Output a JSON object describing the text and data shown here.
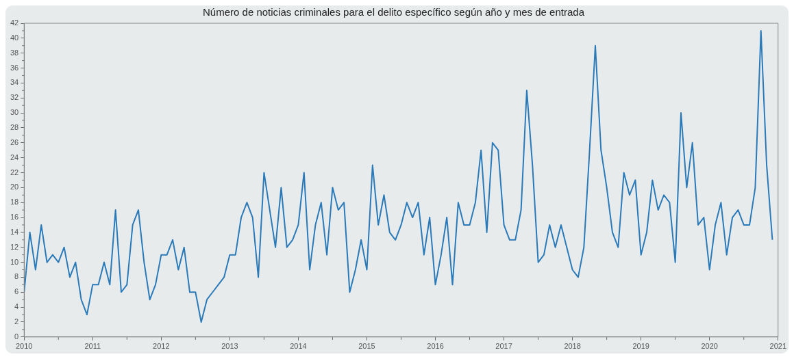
{
  "chart_data": {
    "type": "line",
    "title": "Número de noticias criminales para el delito específico según año y mes de entrada",
    "x": [
      "2010-01",
      "2010-02",
      "2010-03",
      "2010-04",
      "2010-05",
      "2010-06",
      "2010-07",
      "2010-08",
      "2010-09",
      "2010-10",
      "2010-11",
      "2010-12",
      "2011-01",
      "2011-02",
      "2011-03",
      "2011-04",
      "2011-05",
      "2011-06",
      "2011-07",
      "2011-08",
      "2011-09",
      "2011-10",
      "2011-11",
      "2011-12",
      "2012-01",
      "2012-02",
      "2012-03",
      "2012-04",
      "2012-05",
      "2012-06",
      "2012-07",
      "2012-08",
      "2012-09",
      "2012-10",
      "2012-11",
      "2012-12",
      "2013-01",
      "2013-02",
      "2013-03",
      "2013-04",
      "2013-05",
      "2013-06",
      "2013-07",
      "2013-08",
      "2013-09",
      "2013-10",
      "2013-11",
      "2013-12",
      "2014-01",
      "2014-02",
      "2014-03",
      "2014-04",
      "2014-05",
      "2014-06",
      "2014-07",
      "2014-08",
      "2014-09",
      "2014-10",
      "2014-11",
      "2014-12",
      "2015-01",
      "2015-02",
      "2015-03",
      "2015-04",
      "2015-05",
      "2015-06",
      "2015-07",
      "2015-08",
      "2015-09",
      "2015-10",
      "2015-11",
      "2015-12",
      "2016-01",
      "2016-02",
      "2016-03",
      "2016-04",
      "2016-05",
      "2016-06",
      "2016-07",
      "2016-08",
      "2016-09",
      "2016-10",
      "2016-11",
      "2016-12",
      "2017-01",
      "2017-02",
      "2017-03",
      "2017-04",
      "2017-05",
      "2017-06",
      "2017-07",
      "2017-08",
      "2017-09",
      "2017-10",
      "2017-11",
      "2017-12",
      "2018-01",
      "2018-02",
      "2018-03",
      "2018-04",
      "2018-05",
      "2018-06",
      "2018-07",
      "2018-08",
      "2018-09",
      "2018-10",
      "2018-11",
      "2018-12",
      "2019-01",
      "2019-02",
      "2019-03",
      "2019-04",
      "2019-05",
      "2019-06",
      "2019-07",
      "2019-08",
      "2019-09",
      "2019-10",
      "2019-11",
      "2019-12",
      "2020-01",
      "2020-02",
      "2020-03",
      "2020-04",
      "2020-05",
      "2020-06",
      "2020-07",
      "2020-08",
      "2020-09",
      "2020-10",
      "2020-11",
      "2020-12"
    ],
    "series": [
      {
        "color": "#2a7ab9",
        "values": [
          6,
          14,
          9,
          15,
          10,
          11,
          10,
          12,
          8,
          10,
          5,
          3,
          7,
          7,
          10,
          7,
          17,
          6,
          7,
          15,
          17,
          10,
          5,
          7,
          11,
          11,
          13,
          9,
          12,
          6,
          6,
          2,
          5,
          6,
          7,
          8,
          11,
          11,
          16,
          18,
          16,
          8,
          22,
          17,
          12,
          20,
          12,
          13,
          15,
          22,
          9,
          15,
          18,
          11,
          20,
          17,
          18,
          6,
          9,
          13,
          9,
          23,
          15,
          19,
          14,
          13,
          15,
          18,
          16,
          18,
          11,
          16,
          7,
          11,
          16,
          7,
          18,
          15,
          15,
          18,
          25,
          14,
          26,
          25,
          15,
          13,
          13,
          17,
          33,
          23,
          10,
          11,
          15,
          12,
          15,
          12,
          9,
          8,
          12,
          25,
          39,
          25,
          20,
          14,
          12,
          22,
          19,
          21,
          11,
          14,
          21,
          17,
          19,
          18,
          10,
          30,
          20,
          26,
          15,
          16,
          9,
          15,
          18,
          11,
          16,
          17,
          15,
          15,
          20,
          41,
          23,
          13
        ]
      }
    ],
    "xlim": [
      "2010",
      "2021"
    ],
    "xticks": [
      "2010",
      "2011",
      "2012",
      "2013",
      "2014",
      "2015",
      "2016",
      "2017",
      "2018",
      "2019",
      "2020",
      "2021"
    ],
    "ylim": [
      0,
      42
    ],
    "yticks": [
      0,
      2,
      4,
      6,
      8,
      10,
      12,
      14,
      16,
      18,
      20,
      22,
      24,
      26,
      28,
      30,
      32,
      34,
      36,
      38,
      40,
      42
    ],
    "grid": false,
    "legend": false,
    "marker": "none",
    "line_style": "solid"
  }
}
